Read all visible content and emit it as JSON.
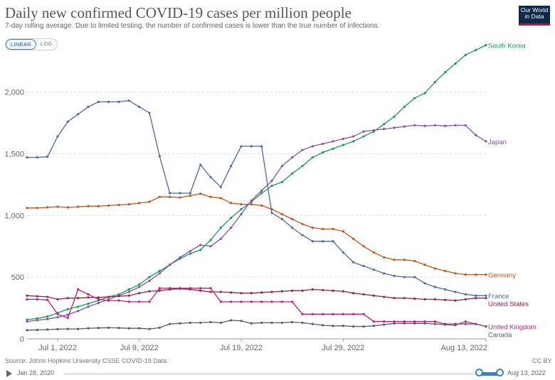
{
  "header": {
    "title": "Daily new confirmed COVID-19 cases per million people",
    "subtitle": "7-day rolling average. Due to limited testing, the number of confirmed cases is lower than the true number of infections.",
    "logo_line1": "Our World",
    "logo_line2": "in Data"
  },
  "scale_toggle": {
    "linear": "LINEAR",
    "log": "LOG"
  },
  "footer": {
    "source": "Source: Johns Hopkins University CSSE COVID-19 Data",
    "license": "CC BY"
  },
  "timeline": {
    "start": "Jan 28, 2020",
    "end": "Aug 13, 2022"
  },
  "chart_data": {
    "type": "line",
    "title": "Daily new confirmed COVID-19 cases per million people",
    "x_range": [
      "Jun 28, 2022",
      "Aug 13, 2022"
    ],
    "x_ticks": [
      "Jul 1, 2022",
      "Jul 9, 2022",
      "Jul 19, 2022",
      "Jul 29, 2022",
      "Aug 13, 2022"
    ],
    "y_ticks": [
      "0",
      "500",
      "1,000",
      "1,500",
      "2,000"
    ],
    "ylim": [
      0,
      2400
    ],
    "grid": true,
    "colors": {
      "South Korea": "#1b9a58",
      "Japan": "#8a4fa8",
      "Germany": "#c0561d",
      "France": "#4a6aa3",
      "United States": "#8f2549",
      "United Kingdom": "#be1f7b",
      "Canada": "#5c5470"
    },
    "series": [
      {
        "name": "South Korea",
        "values": [
          155,
          165,
          180,
          210,
          240,
          260,
          285,
          310,
          340,
          360,
          400,
          440,
          500,
          550,
          600,
          650,
          690,
          720,
          800,
          900,
          980,
          1050,
          1110,
          1180,
          1240,
          1270,
          1340,
          1400,
          1470,
          1510,
          1540,
          1570,
          1600,
          1640,
          1680,
          1740,
          1800,
          1880,
          1950,
          1990,
          2080,
          2160,
          2230,
          2300,
          2340,
          2380
        ]
      },
      {
        "name": "Japan",
        "values": [
          140,
          150,
          160,
          175,
          195,
          225,
          260,
          290,
          320,
          350,
          380,
          420,
          470,
          530,
          600,
          660,
          710,
          760,
          750,
          810,
          900,
          1010,
          1120,
          1200,
          1280,
          1400,
          1470,
          1530,
          1560,
          1580,
          1600,
          1620,
          1640,
          1680,
          1690,
          1700,
          1710,
          1720,
          1730,
          1725,
          1730,
          1725,
          1730,
          1730,
          1650,
          1600
        ]
      },
      {
        "name": "Germany",
        "values": [
          1060,
          1060,
          1065,
          1070,
          1065,
          1070,
          1075,
          1075,
          1080,
          1085,
          1090,
          1100,
          1110,
          1150,
          1150,
          1145,
          1160,
          1175,
          1150,
          1140,
          1100,
          1090,
          1090,
          1080,
          1050,
          1010,
          970,
          930,
          900,
          890,
          890,
          870,
          810,
          750,
          700,
          660,
          640,
          640,
          630,
          600,
          570,
          550,
          530,
          520,
          520,
          520
        ]
      },
      {
        "name": "France",
        "values": [
          1470,
          1470,
          1475,
          1640,
          1760,
          1820,
          1880,
          1920,
          1920,
          1920,
          1930,
          1880,
          1830,
          1480,
          1180,
          1180,
          1180,
          1410,
          1310,
          1230,
          1400,
          1560,
          1560,
          1560,
          1020,
          970,
          900,
          840,
          790,
          790,
          790,
          700,
          620,
          590,
          560,
          530,
          510,
          500,
          500,
          450,
          420,
          400,
          380,
          360,
          350,
          350
        ]
      },
      {
        "name": "United States",
        "values": [
          350,
          345,
          340,
          320,
          330,
          330,
          335,
          335,
          340,
          345,
          350,
          370,
          385,
          390,
          400,
          405,
          400,
          390,
          380,
          380,
          375,
          370,
          370,
          375,
          380,
          385,
          390,
          390,
          400,
          395,
          390,
          385,
          370,
          360,
          350,
          340,
          330,
          330,
          325,
          320,
          320,
          315,
          310,
          320,
          330,
          330
        ]
      },
      {
        "name": "United Kingdom",
        "values": [
          320,
          320,
          315,
          200,
          170,
          400,
          360,
          320,
          310,
          310,
          300,
          300,
          300,
          410,
          410,
          410,
          410,
          410,
          410,
          300,
          300,
          300,
          300,
          300,
          300,
          300,
          300,
          200,
          200,
          200,
          200,
          200,
          200,
          200,
          140,
          140,
          140,
          140,
          140,
          140,
          140,
          120,
          120,
          120,
          120,
          100
        ]
      },
      {
        "name": "Canada",
        "values": [
          70,
          72,
          75,
          78,
          80,
          80,
          85,
          88,
          90,
          88,
          85,
          85,
          80,
          90,
          120,
          125,
          130,
          130,
          135,
          130,
          150,
          145,
          125,
          130,
          130,
          130,
          135,
          130,
          120,
          110,
          105,
          105,
          100,
          100,
          105,
          115,
          125,
          125,
          125,
          125,
          120,
          115,
          110,
          140,
          120,
          100
        ]
      }
    ]
  }
}
